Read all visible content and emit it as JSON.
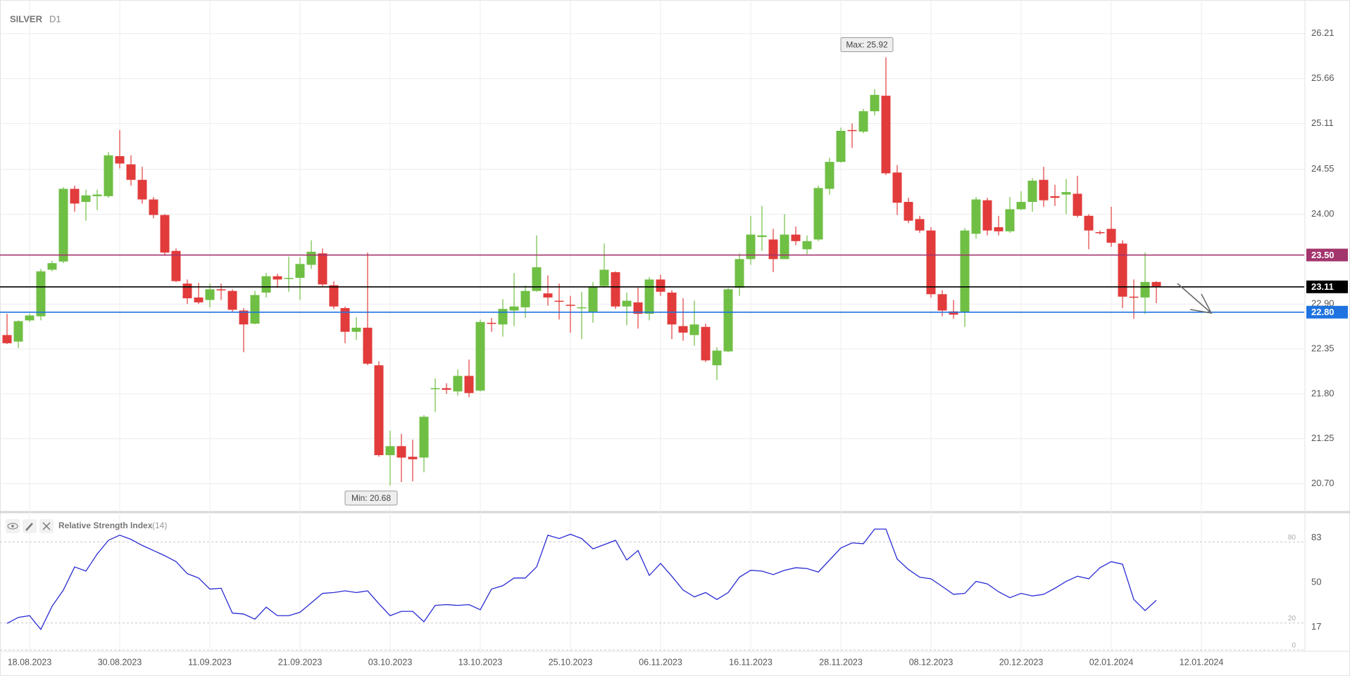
{
  "chart_data": [
    {
      "type": "candlestick",
      "title": "SILVER",
      "timeframe": "D1",
      "categories": [
        null,
        null,
        "18.08.2023",
        null,
        null,
        null,
        null,
        null,
        null,
        null,
        "30.08.2023",
        null,
        null,
        null,
        null,
        null,
        null,
        null,
        "11.09.2023",
        null,
        null,
        null,
        null,
        null,
        null,
        null,
        "21.09.2023",
        null,
        null,
        null,
        null,
        null,
        null,
        null,
        "03.10.2023",
        null,
        null,
        null,
        null,
        null,
        null,
        null,
        "13.10.2023",
        null,
        null,
        null,
        null,
        null,
        null,
        null,
        "25.10.2023",
        null,
        null,
        null,
        null,
        null,
        null,
        null,
        "06.11.2023",
        null,
        null,
        null,
        null,
        null,
        null,
        null,
        "16.11.2023",
        null,
        null,
        null,
        null,
        null,
        null,
        null,
        "28.11.2023",
        null,
        null,
        null,
        null,
        null,
        null,
        null,
        "08.12.2023",
        null,
        null,
        null,
        null,
        null,
        null,
        null,
        "20.12.2023",
        null,
        null,
        null,
        null,
        null,
        null,
        null,
        "02.01.2024",
        null,
        null,
        null,
        null,
        null,
        null,
        null,
        "12.01.2024",
        null,
        null,
        null,
        null,
        null,
        null,
        null,
        null,
        null
      ],
      "open": [
        22.52,
        22.44,
        22.7,
        22.75,
        23.32,
        23.42,
        24.31,
        24.15,
        24.22,
        24.22,
        24.71,
        24.61,
        24.42,
        24.18,
        23.99,
        23.55,
        23.15,
        22.98,
        22.95,
        23.08,
        23.06,
        22.82,
        22.66,
        23.04,
        23.24,
        23.21,
        23.22,
        23.38,
        23.52,
        23.13,
        22.85,
        22.56,
        22.61,
        22.15,
        21.05,
        21.16,
        21.03,
        21.02,
        21.86,
        21.87,
        21.83,
        22.02,
        21.84,
        22.67,
        22.65,
        22.82,
        22.86,
        23.06,
        23.03,
        22.94,
        22.89,
        22.85,
        22.8,
        23.12,
        23.29,
        22.87,
        22.92,
        22.78,
        23.2,
        23.04,
        22.63,
        22.52,
        22.62,
        22.15,
        22.32,
        23.1,
        23.45,
        23.72,
        23.69,
        23.45,
        23.75,
        23.57,
        23.69,
        24.31,
        24.64,
        25.03,
        25.01,
        25.26,
        25.45,
        24.51,
        24.15,
        23.94,
        23.8,
        23.02,
        22.81,
        22.8,
        23.76,
        24.17,
        23.84,
        23.79,
        24.06,
        24.15,
        24.42,
        24.22,
        24.24,
        24.25,
        23.98,
        23.78,
        23.82,
        23.64,
        22.99,
        22.98,
        23.17,
        null,
        null,
        null,
        null,
        null,
        null,
        null,
        null,
        null,
        null,
        null,
        null,
        null
      ],
      "high": [
        22.78,
        22.7,
        22.78,
        23.33,
        23.43,
        24.33,
        24.35,
        24.3,
        24.3,
        24.76,
        25.03,
        24.72,
        24.58,
        24.21,
        24.0,
        23.58,
        23.2,
        23.16,
        23.15,
        23.15,
        23.08,
        22.85,
        23.06,
        23.28,
        23.27,
        23.48,
        23.47,
        23.68,
        23.58,
        23.18,
        22.87,
        22.74,
        23.53,
        22.2,
        21.35,
        21.31,
        21.24,
        21.54,
        21.99,
        21.93,
        22.1,
        22.22,
        22.71,
        22.73,
        22.96,
        23.28,
        23.13,
        23.74,
        23.25,
        23.15,
        23.0,
        23.05,
        23.17,
        23.64,
        23.3,
        23.04,
        23.1,
        23.23,
        23.26,
        23.07,
        22.97,
        22.94,
        22.66,
        22.37,
        23.1,
        23.52,
        23.98,
        24.1,
        23.82,
        24.0,
        23.85,
        23.74,
        24.35,
        24.69,
        25.06,
        25.11,
        25.29,
        25.53,
        25.92,
        24.6,
        24.2,
        23.98,
        23.84,
        23.07,
        22.95,
        23.83,
        24.21,
        24.2,
        23.98,
        24.21,
        24.28,
        24.44,
        24.58,
        24.36,
        24.43,
        24.47,
        24.0,
        23.8,
        24.09,
        23.68,
        23.2,
        23.53,
        23.18,
        null,
        null,
        null,
        null,
        null,
        null,
        null,
        null,
        null,
        null,
        null,
        null,
        null
      ],
      "low": [
        22.41,
        22.36,
        22.68,
        22.7,
        23.3,
        23.4,
        24.03,
        23.92,
        24.05,
        24.2,
        24.56,
        24.35,
        24.13,
        23.95,
        23.49,
        23.17,
        22.9,
        22.9,
        22.86,
        22.95,
        22.8,
        22.31,
        22.65,
        22.98,
        23.1,
        23.05,
        22.95,
        23.33,
        23.12,
        22.84,
        22.42,
        22.46,
        22.15,
        21.03,
        20.68,
        20.72,
        20.73,
        20.84,
        21.58,
        21.8,
        21.78,
        21.76,
        21.83,
        22.56,
        22.5,
        22.63,
        22.73,
        23.05,
        22.88,
        22.71,
        22.55,
        22.47,
        22.67,
        23.1,
        22.84,
        22.64,
        22.6,
        22.7,
        23.0,
        22.47,
        22.45,
        22.39,
        22.19,
        21.97,
        22.31,
        23.0,
        23.38,
        23.55,
        23.29,
        23.45,
        23.62,
        23.51,
        23.67,
        24.24,
        24.63,
        24.81,
        24.99,
        25.21,
        24.48,
        23.99,
        23.89,
        23.77,
        22.98,
        22.75,
        22.72,
        22.62,
        23.7,
        23.74,
        23.74,
        23.77,
        24.05,
        24.03,
        24.09,
        24.1,
        24.0,
        23.96,
        23.57,
        23.75,
        23.6,
        22.85,
        22.72,
        22.78,
        22.91,
        null,
        null,
        null,
        null,
        null,
        null,
        null,
        null,
        null,
        null,
        null,
        null,
        null
      ],
      "close": [
        22.42,
        22.69,
        22.76,
        23.3,
        23.4,
        24.31,
        24.13,
        24.23,
        24.24,
        24.72,
        24.62,
        24.42,
        24.18,
        23.99,
        23.53,
        23.18,
        22.97,
        22.92,
        23.08,
        23.07,
        22.83,
        22.65,
        23.01,
        23.24,
        23.2,
        23.22,
        23.39,
        23.54,
        23.14,
        22.87,
        22.56,
        22.61,
        22.17,
        21.05,
        21.16,
        21.02,
        21.0,
        21.52,
        21.87,
        21.85,
        22.02,
        21.81,
        22.68,
        22.66,
        22.84,
        22.87,
        23.06,
        23.35,
        22.98,
        22.93,
        22.88,
        22.86,
        23.11,
        23.32,
        22.87,
        22.94,
        22.78,
        23.2,
        23.05,
        22.65,
        22.55,
        22.65,
        22.21,
        22.33,
        23.08,
        23.45,
        23.75,
        23.74,
        23.45,
        23.75,
        23.67,
        23.67,
        24.32,
        24.64,
        25.02,
        25.02,
        25.26,
        25.46,
        24.5,
        24.14,
        23.92,
        23.8,
        23.02,
        22.82,
        22.77,
        23.8,
        24.18,
        23.8,
        23.79,
        24.06,
        24.15,
        24.41,
        24.17,
        24.2,
        24.27,
        23.98,
        23.8,
        23.77,
        23.65,
        22.99,
        22.98,
        23.17,
        23.11,
        null,
        null,
        null,
        null,
        null,
        null,
        null,
        null,
        null,
        null,
        null,
        null,
        null
      ],
      "up_color": "#6fbf44",
      "down_color": "#e23b3b",
      "ylim": [
        20.37,
        26.57
      ],
      "yticks": [
        {
          "value": 26.21,
          "label": "26.21"
        },
        {
          "value": 25.66,
          "label": "25.66"
        },
        {
          "value": 25.11,
          "label": "25.11"
        },
        {
          "value": 24.55,
          "label": "24.55"
        },
        {
          "value": 24.0,
          "label": "24.00"
        },
        {
          "value": 22.9,
          "label": "22.90"
        },
        {
          "value": 22.35,
          "label": "22.35"
        },
        {
          "value": 21.8,
          "label": "21.80"
        },
        {
          "value": 21.25,
          "label": "21.25"
        },
        {
          "value": 20.7,
          "label": "20.70"
        }
      ],
      "levels": [
        {
          "value": 23.5,
          "label": "23.50",
          "color": "#a3356d"
        },
        {
          "value": 23.11,
          "label": "23.11",
          "color": "#000000"
        },
        {
          "value": 22.8,
          "label": "22.80",
          "color": "#1f73e0"
        }
      ],
      "max_label": "Max: 25.92",
      "min_label": "Min: 20.68",
      "grid": true
    },
    {
      "type": "line",
      "title": "Relative Strength Index",
      "parameters": "(14)",
      "color": "#2a2ad4",
      "values": [
        19.7,
        24.1,
        25.4,
        15.2,
        32.4,
        44.4,
        61.5,
        58.4,
        71.1,
        81.2,
        85.0,
        81.9,
        77.4,
        73.6,
        69.8,
        65.4,
        56.5,
        53.3,
        45.1,
        45.7,
        27.3,
        26.6,
        22.8,
        31.7,
        25.4,
        25.4,
        27.9,
        34.9,
        41.9,
        42.5,
        43.8,
        42.5,
        43.8,
        34.3,
        25.4,
        28.6,
        28.6,
        20.9,
        33.0,
        33.6,
        33.0,
        33.6,
        29.8,
        45.1,
        47.6,
        53.3,
        53.3,
        61.5,
        85.0,
        82.5,
        85.7,
        82.5,
        74.9,
        78.0,
        81.2,
        66.6,
        73.6,
        55.2,
        64.1,
        54.6,
        44.4,
        39.3,
        42.5,
        37.4,
        42.5,
        53.9,
        59.0,
        58.4,
        55.8,
        59.0,
        60.9,
        60.3,
        57.7,
        66.6,
        75.5,
        79.3,
        78.7,
        89.5,
        89.5,
        67.3,
        59.6,
        53.9,
        52.7,
        47.0,
        41.2,
        41.9,
        50.8,
        48.9,
        43.1,
        38.7,
        41.9,
        40.0,
        41.2,
        45.7,
        50.8,
        54.6,
        52.7,
        60.9,
        65.4,
        63.5,
        37.4,
        29.2,
        36.8,
        null,
        null,
        null,
        null,
        null,
        null,
        null,
        null,
        null,
        null,
        null,
        null,
        null
      ],
      "ylim": [
        0,
        100
      ],
      "yticks": [
        17,
        50,
        83
      ],
      "levels": [
        0,
        20,
        80
      ]
    }
  ]
}
